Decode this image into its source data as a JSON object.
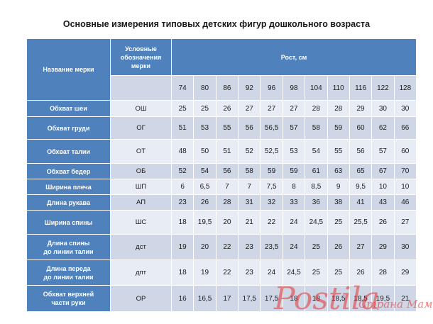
{
  "title": "Основные измерения типовых детских фигур дошкольного возраста",
  "header": {
    "name_col": "Название мерки",
    "code_col_lines": [
      "Условные",
      "обозначения",
      "мерки"
    ],
    "height_col": "Рост, см"
  },
  "heights": [
    "74",
    "80",
    "86",
    "92",
    "96",
    "98",
    "104",
    "110",
    "116",
    "122",
    "128"
  ],
  "rows": [
    {
      "name": [
        "Обхват шеи"
      ],
      "code": "ОШ",
      "values": [
        "25",
        "25",
        "26",
        "27",
        "27",
        "27",
        "28",
        "28",
        "29",
        "30",
        "30"
      ]
    },
    {
      "name": [
        "Обхват груди"
      ],
      "code": "ОГ",
      "values": [
        "51",
        "53",
        "55",
        "56",
        "56,5",
        "57",
        "58",
        "59",
        "60",
        "62",
        "66"
      ]
    },
    {
      "name": [
        "Обхват талии"
      ],
      "code": "ОТ",
      "values": [
        "48",
        "50",
        "51",
        "52",
        "52,5",
        "53",
        "54",
        "55",
        "56",
        "57",
        "60"
      ]
    },
    {
      "name": [
        "Обхват бедер"
      ],
      "code": "ОБ",
      "values": [
        "52",
        "54",
        "56",
        "58",
        "59",
        "59",
        "61",
        "63",
        "65",
        "67",
        "70"
      ]
    },
    {
      "name": [
        "Ширина плеча"
      ],
      "code": "ШП",
      "values": [
        "6",
        "6,5",
        "7",
        "7",
        "7,5",
        "8",
        "8,5",
        "9",
        "9,5",
        "10",
        "10"
      ]
    },
    {
      "name": [
        "Длина рукава"
      ],
      "code": "АП",
      "values": [
        "23",
        "26",
        "28",
        "31",
        "32",
        "33",
        "36",
        "38",
        "41",
        "43",
        "46"
      ]
    },
    {
      "name": [
        "Ширина спины"
      ],
      "code": "ШС",
      "values": [
        "18",
        "19,5",
        "20",
        "21",
        "22",
        "24",
        "24,5",
        "25",
        "25,5",
        "26",
        "27"
      ]
    },
    {
      "name": [
        "Длина спины",
        "до линии талии"
      ],
      "code": "дст",
      "values": [
        "19",
        "20",
        "22",
        "23",
        "23,5",
        "24",
        "25",
        "26",
        "27",
        "29",
        "30"
      ]
    },
    {
      "name": [
        "Длина переда",
        "до линии талии"
      ],
      "code": "дпт",
      "values": [
        "18",
        "19",
        "22",
        "23",
        "24",
        "24,5",
        "25",
        "25",
        "26",
        "28",
        "29"
      ]
    },
    {
      "name": [
        "Обхват верхней",
        "части руки"
      ],
      "code": "ОР",
      "values": [
        "16",
        "16,5",
        "17",
        "17,5",
        "17,5",
        "18",
        "18",
        "18,5",
        "18,5",
        "19,5",
        "21"
      ]
    }
  ],
  "watermark": {
    "main": "Postila",
    "sub": "Страна Мам"
  }
}
